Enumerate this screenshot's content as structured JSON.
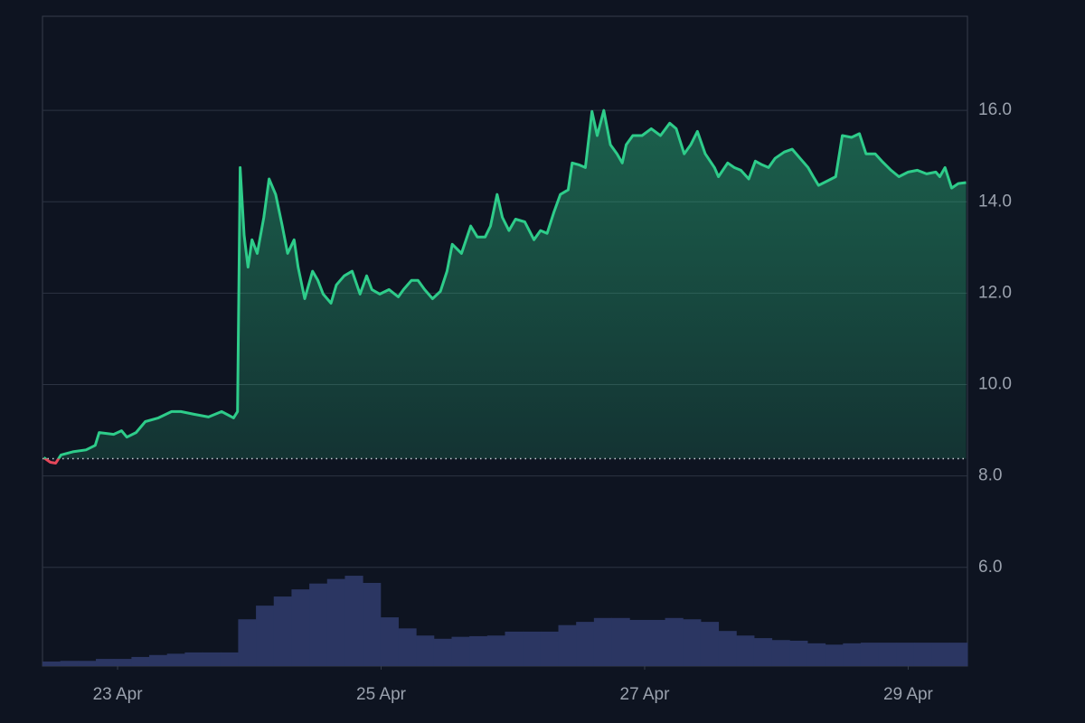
{
  "chart_data": {
    "type": "line",
    "area": true,
    "x": [
      22.44,
      22.49,
      22.53,
      22.57,
      22.66,
      22.76,
      22.83,
      22.86,
      22.97,
      23.03,
      23.07,
      23.14,
      23.21,
      23.31,
      23.41,
      23.48,
      23.58,
      23.69,
      23.79,
      23.88,
      23.91,
      23.93,
      23.96,
      23.99,
      24.02,
      24.06,
      24.11,
      24.15,
      24.2,
      24.25,
      24.29,
      24.34,
      24.37,
      24.42,
      24.48,
      24.52,
      24.56,
      24.62,
      24.66,
      24.72,
      24.78,
      24.84,
      24.89,
      24.93,
      24.99,
      25.06,
      25.13,
      25.17,
      25.23,
      25.28,
      25.33,
      25.39,
      25.45,
      25.5,
      25.54,
      25.61,
      25.68,
      25.73,
      25.79,
      25.83,
      25.88,
      25.92,
      25.97,
      26.02,
      26.09,
      26.16,
      26.21,
      26.26,
      26.31,
      26.36,
      26.42,
      26.45,
      26.5,
      26.55,
      26.6,
      26.64,
      26.69,
      26.74,
      26.79,
      26.83,
      26.86,
      26.91,
      26.98,
      27.05,
      27.12,
      27.19,
      27.24,
      27.3,
      27.35,
      27.4,
      27.46,
      27.53,
      27.56,
      27.63,
      27.68,
      27.73,
      27.79,
      27.84,
      27.89,
      27.94,
      27.99,
      28.06,
      28.12,
      28.18,
      28.24,
      28.28,
      28.32,
      28.39,
      28.45,
      28.5,
      28.57,
      28.63,
      28.68,
      28.75,
      28.8,
      28.87,
      28.93,
      29.0,
      29.07,
      29.14,
      29.21,
      29.24,
      29.28,
      29.33,
      29.38,
      29.44
    ],
    "series": [
      {
        "color": "#2ecc8a",
        "down_color": "#e5475a",
        "values": [
          8.4,
          8.3,
          8.28,
          8.46,
          8.53,
          8.57,
          8.67,
          8.95,
          8.91,
          8.99,
          8.85,
          8.95,
          9.19,
          9.27,
          9.41,
          9.41,
          9.35,
          9.29,
          9.41,
          9.27,
          9.41,
          14.75,
          13.27,
          12.57,
          13.17,
          12.87,
          13.66,
          14.5,
          14.16,
          13.47,
          12.87,
          13.17,
          12.57,
          11.88,
          12.48,
          12.28,
          11.98,
          11.78,
          12.18,
          12.38,
          12.48,
          11.98,
          12.38,
          12.08,
          11.98,
          12.08,
          11.92,
          12.08,
          12.28,
          12.28,
          12.08,
          11.88,
          12.04,
          12.48,
          13.07,
          12.87,
          13.47,
          13.23,
          13.23,
          13.47,
          14.16,
          13.66,
          13.37,
          13.62,
          13.56,
          13.17,
          13.37,
          13.31,
          13.76,
          14.16,
          14.26,
          14.85,
          14.81,
          14.75,
          15.98,
          15.45,
          16.0,
          15.25,
          15.05,
          14.85,
          15.25,
          15.45,
          15.45,
          15.6,
          15.45,
          15.72,
          15.6,
          15.05,
          15.25,
          15.54,
          15.05,
          14.75,
          14.55,
          14.85,
          14.75,
          14.69,
          14.5,
          14.89,
          14.81,
          14.75,
          14.95,
          15.09,
          15.15,
          14.95,
          14.75,
          14.55,
          14.36,
          14.46,
          14.55,
          15.45,
          15.41,
          15.49,
          15.05,
          15.05,
          14.89,
          14.69,
          14.55,
          14.65,
          14.69,
          14.61,
          14.65,
          14.55,
          14.75,
          14.3,
          14.4,
          14.42
        ]
      }
    ],
    "baseline": 8.38,
    "volume": {
      "color": "#2b3662",
      "y2lim": [
        0,
        100
      ],
      "values": [
        0.7,
        0.8,
        0.8,
        1.1,
        1.1,
        1.4,
        1.7,
        1.9,
        2.1,
        2.1,
        2.1,
        7.2,
        9.3,
        10.7,
        11.8,
        12.7,
        13.4,
        13.9,
        12.8,
        7.5,
        5.8,
        4.7,
        4.2,
        4.5,
        4.6,
        4.7,
        5.3,
        5.3,
        5.3,
        6.3,
        6.8,
        7.4,
        7.4,
        7.1,
        7.1,
        7.4,
        7.2,
        6.8,
        5.4,
        4.7,
        4.3,
        4.0,
        3.9,
        3.5,
        3.3,
        3.5,
        3.6,
        3.6,
        3.6,
        3.6,
        3.6,
        3.6
      ]
    },
    "xlim": [
      22.43,
      29.45
    ],
    "xticks": [
      {
        "value": 23,
        "label": "23 Apr"
      },
      {
        "value": 25,
        "label": "25 Apr"
      },
      {
        "value": 27,
        "label": "27 Apr"
      },
      {
        "value": 29,
        "label": "29 Apr"
      }
    ],
    "ylim": [
      3.84,
      18.06
    ],
    "yticks": [
      {
        "value": 6,
        "label": "6.0"
      },
      {
        "value": 8,
        "label": "8.0"
      },
      {
        "value": 10,
        "label": "10.0"
      },
      {
        "value": 12,
        "label": "12.0"
      },
      {
        "value": 14,
        "label": "14.0"
      },
      {
        "value": 16,
        "label": "16.0"
      }
    ],
    "grid": true
  }
}
